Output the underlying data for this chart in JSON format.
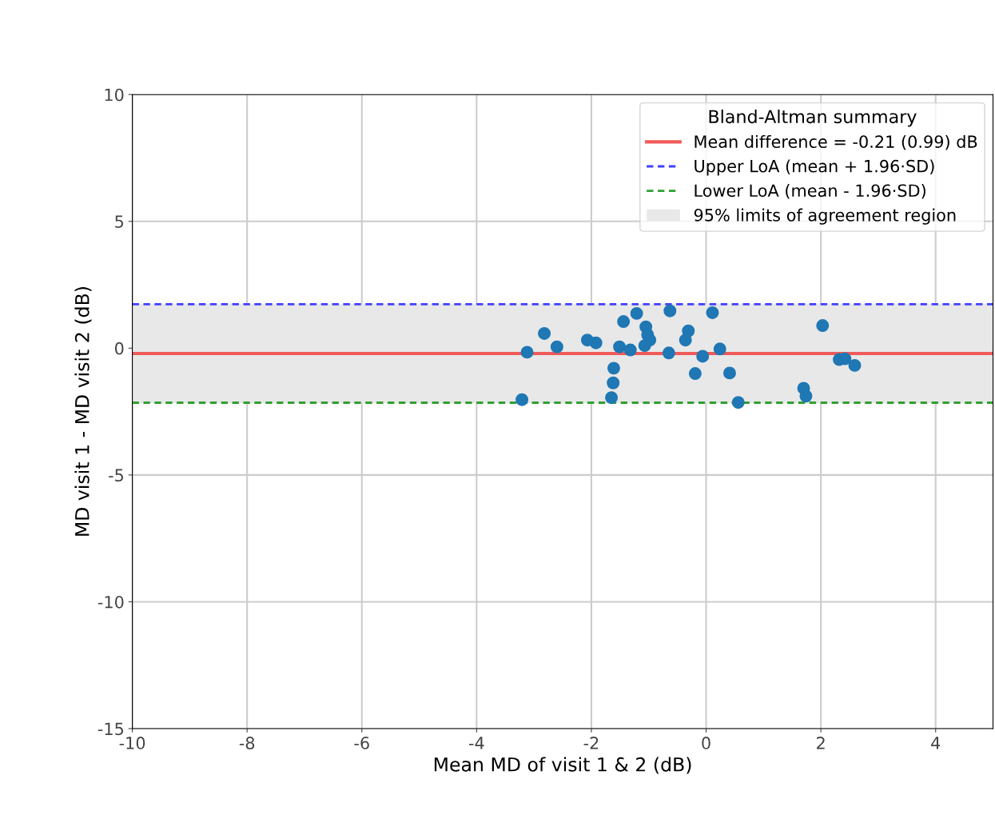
{
  "chart_data": {
    "type": "scatter",
    "xlabel": "Mean MD of visit 1 & 2 (dB)",
    "ylabel": "MD visit 1 - MD visit 2 (dB)",
    "legend_title": "Bland-Altman summary",
    "xlim": [
      -10,
      5
    ],
    "xticks": [
      -10,
      -8,
      -6,
      -4,
      -2,
      0,
      2,
      4
    ],
    "ylim": [
      -15,
      10
    ],
    "yticks": [
      -15,
      -10,
      -5,
      0,
      5,
      10
    ],
    "grid": true,
    "legend": "top right",
    "marker": "circle",
    "series": [
      {
        "color": "#1f77b4",
        "x": [
          -3.12,
          -2.82,
          -2.6,
          -3.21,
          -2.07,
          -1.92,
          -1.51,
          -1.32,
          -1.61,
          -1.62,
          -1.65,
          -1.44,
          -1.21,
          -1.05,
          -1.02,
          -0.98,
          -1.07,
          -0.63,
          -0.65,
          -0.31,
          -0.36,
          -0.19,
          -0.06,
          0.11,
          0.24,
          0.41,
          0.56,
          2.03,
          2.32,
          2.42,
          2.59,
          1.7,
          1.74
        ],
        "values": [
          -0.16,
          0.58,
          0.05,
          -2.03,
          0.32,
          0.21,
          0.05,
          -0.07,
          -0.79,
          -1.37,
          -1.95,
          1.05,
          1.37,
          0.84,
          0.53,
          0.32,
          0.1,
          1.47,
          -0.19,
          0.68,
          0.32,
          -1.0,
          -0.32,
          1.4,
          -0.03,
          -0.98,
          -2.14,
          0.89,
          -0.45,
          -0.42,
          -0.68,
          -1.58,
          -1.89
        ]
      }
    ],
    "ref_lines": [
      {
        "axis": "y",
        "value": -0.21,
        "label": "Mean difference = -0.21 (0.99) dB",
        "color": "#f05a5a",
        "line_style": "solid"
      },
      {
        "axis": "y",
        "value": 1.73,
        "label": "Upper LoA (mean + 1.96·SD)",
        "color": "#4040ff",
        "line_style": "dashed"
      },
      {
        "axis": "y",
        "value": -2.15,
        "label": "Lower LoA (mean - 1.96·SD)",
        "color": "#30a030",
        "line_style": "dashed"
      }
    ],
    "bands": [
      {
        "axis": "y",
        "from": -2.15,
        "to": 1.73,
        "label": "95% limits of agreement region",
        "color": "#e8e8e8"
      }
    ]
  }
}
